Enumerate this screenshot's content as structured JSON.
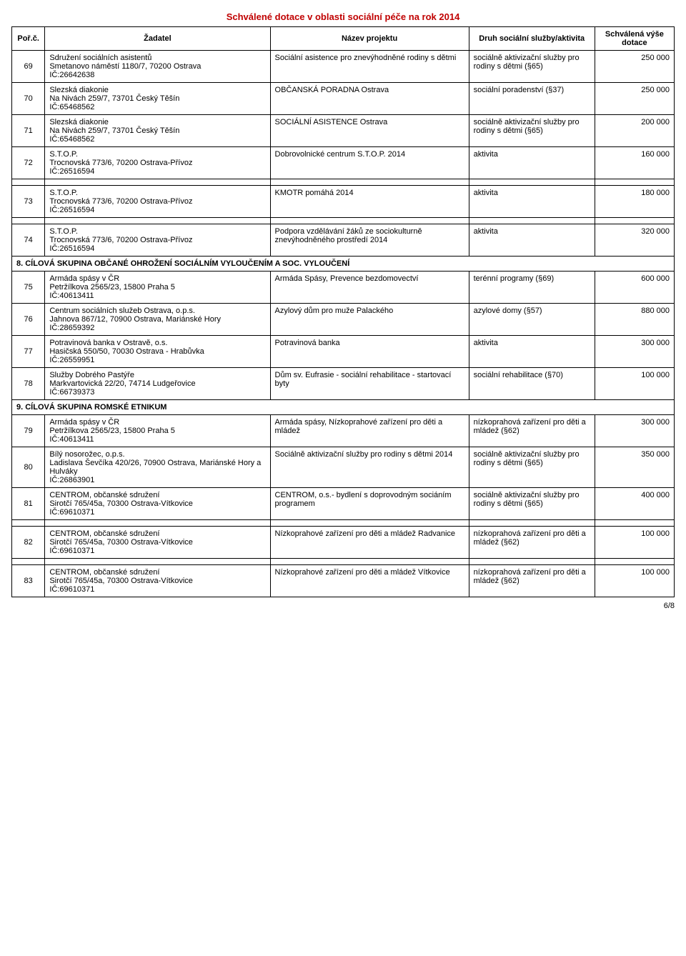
{
  "title": "Schválené dotace v oblasti sociální péče na rok 2014",
  "headers": {
    "num": "Poř.č.",
    "applicant": "Žadatel",
    "project": "Název projektu",
    "type": "Druh sociální služby/aktivita",
    "amount": "Schválená výše dotace"
  },
  "rows": [
    {
      "num": "69",
      "applicant": "Sdružení sociálních asistentů\nSmetanovo náměstí 1180/7, 70200 Ostrava\nIČ:26642638",
      "project": "Sociální asistence pro znevýhodněné rodiny s dětmi",
      "type": "sociálně aktivizační služby pro rodiny s dětmi (§65)",
      "amount": "250 000"
    },
    {
      "num": "70",
      "applicant": "Slezská diakonie\nNa Nivách 259/7, 73701 Český Těšín\nIČ:65468562",
      "project": "OBČANSKÁ PORADNA Ostrava",
      "type": "sociální poradenství (§37)",
      "amount": "250 000"
    },
    {
      "num": "71",
      "applicant": "Slezská diakonie\nNa Nivách 259/7, 73701 Český Těšín\nIČ:65468562",
      "project": "SOCIÁLNÍ ASISTENCE Ostrava",
      "type": "sociálně aktivizační služby pro rodiny s dětmi (§65)",
      "amount": "200 000"
    },
    {
      "num": "72",
      "applicant": "S.T.O.P.\nTrocnovská 773/6, 70200 Ostrava-Přívoz\nIČ:26516594",
      "project": "Dobrovolnické centrum S.T.O.P. 2014",
      "type": "aktivita",
      "amount": "160 000"
    },
    {
      "num": "73",
      "applicant": "S.T.O.P.\nTrocnovská 773/6, 70200 Ostrava-Přívoz\nIČ:26516594",
      "project": "KMOTR pomáhá 2014",
      "type": "aktivita",
      "amount": "180 000"
    },
    {
      "num": "74",
      "applicant": "S.T.O.P.\nTrocnovská 773/6, 70200 Ostrava-Přívoz\nIČ:26516594",
      "project": "Podpora vzdělávání žáků ze sociokulturně znevýhodněného prostředí 2014",
      "type": "aktivita",
      "amount": "320 000"
    }
  ],
  "section8": "8. CÍLOVÁ SKUPINA OBČANÉ OHROŽENÍ SOCIÁLNÍM VYLOUČENÍM A SOC. VYLOUČENÍ",
  "rows8": [
    {
      "num": "75",
      "applicant": "Armáda spásy v ČR\nPetržílkova 2565/23, 15800 Praha 5\nIČ:40613411",
      "project": "Armáda Spásy, Prevence bezdomovectví",
      "type": "terénní programy (§69)",
      "amount": "600 000"
    },
    {
      "num": "76",
      "applicant": "Centrum sociálních služeb Ostrava, o.p.s.\nJahnova 867/12, 70900 Ostrava, Mariánské Hory\nIČ:28659392",
      "project": "Azylový dům pro muže Palackého",
      "type": "azylové domy (§57)",
      "amount": "880 000"
    },
    {
      "num": "77",
      "applicant": "Potravinová banka v Ostravě, o.s.\nHasičská 550/50, 70030 Ostrava - Hrabůvka\nIČ:26559951",
      "project": "Potravinová banka",
      "type": "aktivita",
      "amount": "300 000"
    },
    {
      "num": "78",
      "applicant": "Služby Dobrého Pastýře\nMarkvartovická 22/20, 74714 Ludgeřovice\nIČ:66739373",
      "project": "Dům sv. Eufrasie - sociální rehabilitace - startovací byty",
      "type": "sociální rehabilitace (§70)",
      "amount": "100 000"
    }
  ],
  "section9": "9. CÍLOVÁ SKUPINA ROMSKÉ ETNIKUM",
  "rows9": [
    {
      "num": "79",
      "applicant": "Armáda spásy v ČR\nPetržílkova 2565/23, 15800 Praha 5\nIČ:40613411",
      "project": "Armáda spásy, Nízkoprahové zařízení pro děti a mládež",
      "type": "nízkoprahová zařízení pro děti a mládež (§62)",
      "amount": "300 000"
    },
    {
      "num": "80",
      "applicant": "Bílý nosorožec, o.p.s.\nLadislava Ševčíka 420/26, 70900 Ostrava, Mariánské Hory a Hulváky\nIČ:26863901",
      "project": "Sociálně aktivizační služby pro rodiny s dětmi 2014",
      "type": "sociálně aktivizační služby pro rodiny s dětmi (§65)",
      "amount": "350 000"
    },
    {
      "num": "81",
      "applicant": "CENTROM, občanské sdružení\nSirotčí 765/45a, 70300 Ostrava-Vítkovice\nIČ:69610371",
      "project": "CENTROM, o.s.- bydlení s doprovodným sociáním programem",
      "type": "sociálně aktivizační služby pro rodiny s dětmi (§65)",
      "amount": "400 000"
    },
    {
      "num": "82",
      "applicant": "CENTROM, občanské sdružení\nSirotčí 765/45a, 70300 Ostrava-Vítkovice\nIČ:69610371",
      "project": "Nízkoprahové zařízení pro děti a mládež Radvanice",
      "type": "nízkoprahová zařízení pro děti a mládež (§62)",
      "amount": "100 000"
    },
    {
      "num": "83",
      "applicant": "CENTROM, občanské sdružení\nSirotčí 765/45a, 70300 Ostrava-Vítkovice\nIČ:69610371",
      "project": "Nízkoprahové zařízení pro děti a mládež Vítkovice",
      "type": "nízkoprahová zařízení pro děti a mládež (§62)",
      "amount": "100 000"
    }
  ],
  "footer": "6/8"
}
